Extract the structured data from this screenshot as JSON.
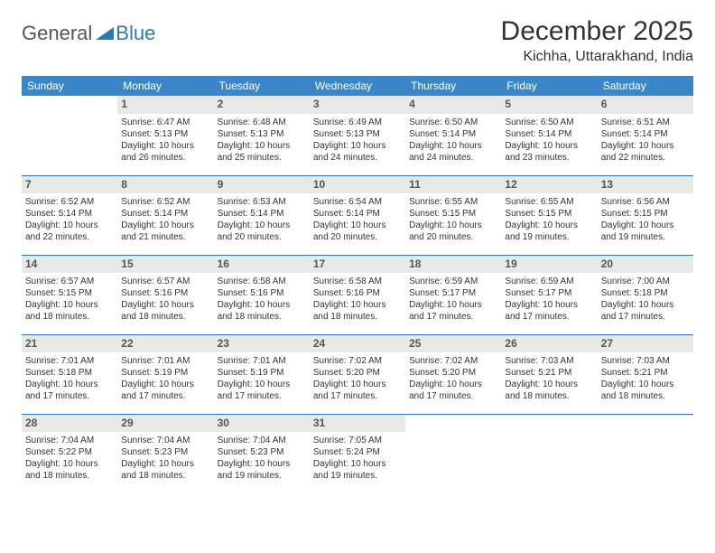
{
  "brand": {
    "part1": "General",
    "part2": "Blue"
  },
  "title": "December 2025",
  "location": "Kichha, Uttarakhand, India",
  "colors": {
    "header_bg": "#3b86c7",
    "accent": "#2f78bd",
    "daynum_bg": "#e8e8e8",
    "text": "#333333"
  },
  "dayNames": [
    "Sunday",
    "Monday",
    "Tuesday",
    "Wednesday",
    "Thursday",
    "Friday",
    "Saturday"
  ],
  "weeks": [
    [
      null,
      {
        "n": "1",
        "sr": "6:47 AM",
        "ss": "5:13 PM",
        "dl": "10 hours and 26 minutes."
      },
      {
        "n": "2",
        "sr": "6:48 AM",
        "ss": "5:13 PM",
        "dl": "10 hours and 25 minutes."
      },
      {
        "n": "3",
        "sr": "6:49 AM",
        "ss": "5:13 PM",
        "dl": "10 hours and 24 minutes."
      },
      {
        "n": "4",
        "sr": "6:50 AM",
        "ss": "5:14 PM",
        "dl": "10 hours and 24 minutes."
      },
      {
        "n": "5",
        "sr": "6:50 AM",
        "ss": "5:14 PM",
        "dl": "10 hours and 23 minutes."
      },
      {
        "n": "6",
        "sr": "6:51 AM",
        "ss": "5:14 PM",
        "dl": "10 hours and 22 minutes."
      }
    ],
    [
      {
        "n": "7",
        "sr": "6:52 AM",
        "ss": "5:14 PM",
        "dl": "10 hours and 22 minutes."
      },
      {
        "n": "8",
        "sr": "6:52 AM",
        "ss": "5:14 PM",
        "dl": "10 hours and 21 minutes."
      },
      {
        "n": "9",
        "sr": "6:53 AM",
        "ss": "5:14 PM",
        "dl": "10 hours and 20 minutes."
      },
      {
        "n": "10",
        "sr": "6:54 AM",
        "ss": "5:14 PM",
        "dl": "10 hours and 20 minutes."
      },
      {
        "n": "11",
        "sr": "6:55 AM",
        "ss": "5:15 PM",
        "dl": "10 hours and 20 minutes."
      },
      {
        "n": "12",
        "sr": "6:55 AM",
        "ss": "5:15 PM",
        "dl": "10 hours and 19 minutes."
      },
      {
        "n": "13",
        "sr": "6:56 AM",
        "ss": "5:15 PM",
        "dl": "10 hours and 19 minutes."
      }
    ],
    [
      {
        "n": "14",
        "sr": "6:57 AM",
        "ss": "5:15 PM",
        "dl": "10 hours and 18 minutes."
      },
      {
        "n": "15",
        "sr": "6:57 AM",
        "ss": "5:16 PM",
        "dl": "10 hours and 18 minutes."
      },
      {
        "n": "16",
        "sr": "6:58 AM",
        "ss": "5:16 PM",
        "dl": "10 hours and 18 minutes."
      },
      {
        "n": "17",
        "sr": "6:58 AM",
        "ss": "5:16 PM",
        "dl": "10 hours and 18 minutes."
      },
      {
        "n": "18",
        "sr": "6:59 AM",
        "ss": "5:17 PM",
        "dl": "10 hours and 17 minutes."
      },
      {
        "n": "19",
        "sr": "6:59 AM",
        "ss": "5:17 PM",
        "dl": "10 hours and 17 minutes."
      },
      {
        "n": "20",
        "sr": "7:00 AM",
        "ss": "5:18 PM",
        "dl": "10 hours and 17 minutes."
      }
    ],
    [
      {
        "n": "21",
        "sr": "7:01 AM",
        "ss": "5:18 PM",
        "dl": "10 hours and 17 minutes."
      },
      {
        "n": "22",
        "sr": "7:01 AM",
        "ss": "5:19 PM",
        "dl": "10 hours and 17 minutes."
      },
      {
        "n": "23",
        "sr": "7:01 AM",
        "ss": "5:19 PM",
        "dl": "10 hours and 17 minutes."
      },
      {
        "n": "24",
        "sr": "7:02 AM",
        "ss": "5:20 PM",
        "dl": "10 hours and 17 minutes."
      },
      {
        "n": "25",
        "sr": "7:02 AM",
        "ss": "5:20 PM",
        "dl": "10 hours and 17 minutes."
      },
      {
        "n": "26",
        "sr": "7:03 AM",
        "ss": "5:21 PM",
        "dl": "10 hours and 18 minutes."
      },
      {
        "n": "27",
        "sr": "7:03 AM",
        "ss": "5:21 PM",
        "dl": "10 hours and 18 minutes."
      }
    ],
    [
      {
        "n": "28",
        "sr": "7:04 AM",
        "ss": "5:22 PM",
        "dl": "10 hours and 18 minutes."
      },
      {
        "n": "29",
        "sr": "7:04 AM",
        "ss": "5:23 PM",
        "dl": "10 hours and 18 minutes."
      },
      {
        "n": "30",
        "sr": "7:04 AM",
        "ss": "5:23 PM",
        "dl": "10 hours and 19 minutes."
      },
      {
        "n": "31",
        "sr": "7:05 AM",
        "ss": "5:24 PM",
        "dl": "10 hours and 19 minutes."
      },
      null,
      null,
      null
    ]
  ],
  "labels": {
    "sunrise": "Sunrise:",
    "sunset": "Sunset:",
    "daylight": "Daylight:"
  }
}
